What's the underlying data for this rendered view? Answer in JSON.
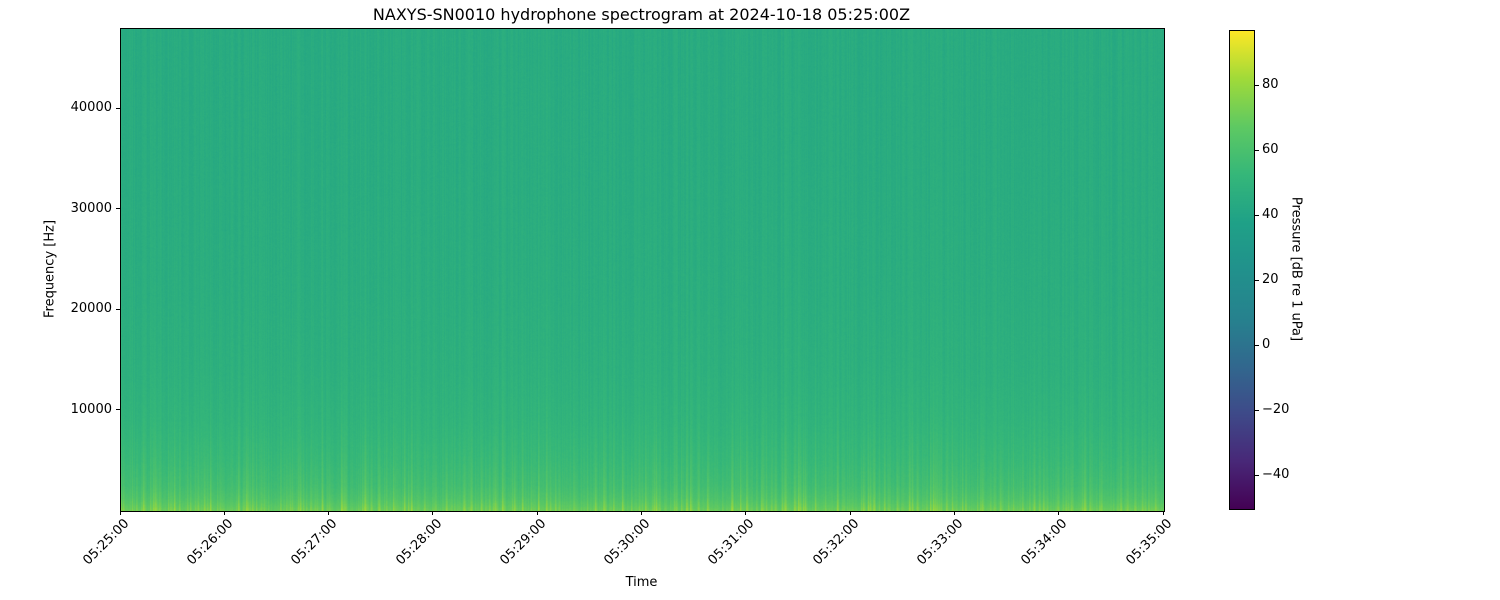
{
  "figure": {
    "title": "NAXYS-SN0010 hydrophone spectrogram at 2024-10-18 05:25:00Z"
  },
  "chart_data": {
    "type": "heatmap",
    "variant": "spectrogram",
    "title": "NAXYS-SN0010 hydrophone spectrogram at 2024-10-18 05:25:00Z",
    "xlabel": "Time",
    "ylabel": "Frequency [Hz]",
    "grid": false,
    "x_ticks": [
      "05:25:00",
      "05:26:00",
      "05:27:00",
      "05:28:00",
      "05:29:00",
      "05:30:00",
      "05:31:00",
      "05:32:00",
      "05:33:00",
      "05:34:00",
      "05:35:00"
    ],
    "x_range": [
      "05:25:00",
      "05:35:00"
    ],
    "y_ticks": [
      {
        "value": 10000,
        "label": "10000"
      },
      {
        "value": 20000,
        "label": "20000"
      },
      {
        "value": 30000,
        "label": "30000"
      },
      {
        "value": 40000,
        "label": "40000"
      }
    ],
    "freq_range_hz": [
      0,
      48000
    ],
    "colormap": "viridis",
    "colormap_stops": [
      "#440154",
      "#482878",
      "#3e4a89",
      "#31688e",
      "#26828e",
      "#21918c",
      "#1fa187",
      "#35b779",
      "#5ec962",
      "#a0da39",
      "#fde725"
    ],
    "colorbar": {
      "label": "Pressure [dB re 1 uPa]",
      "vmin": -50,
      "vmax": 97,
      "ticks": [
        {
          "value": 80,
          "label": "80"
        },
        {
          "value": 60,
          "label": "60"
        },
        {
          "value": 40,
          "label": "40"
        },
        {
          "value": 20,
          "label": "20"
        },
        {
          "value": 0,
          "label": "0"
        },
        {
          "value": -20,
          "label": "−20"
        },
        {
          "value": -40,
          "label": "−40"
        }
      ]
    },
    "intensity_profile_db_vs_hz": [
      [
        0,
        68
      ],
      [
        400,
        65
      ],
      [
        1200,
        60
      ],
      [
        2500,
        56
      ],
      [
        5000,
        53
      ],
      [
        9000,
        50
      ],
      [
        14000,
        48
      ],
      [
        22000,
        46.5
      ],
      [
        34000,
        45.5
      ],
      [
        48000,
        45
      ]
    ],
    "texture": {
      "description": "broadband vertical transient striping, strongest below ~9 kHz, bright band below ~1.5 kHz",
      "seed": 1234,
      "pulse_probability": 0.5,
      "low_freq_pulse_db": 13,
      "pulse_freq_decay_hz": 4500,
      "broadband_stripe_db": 2.2,
      "pixel_noise_db": 2.2
    }
  }
}
